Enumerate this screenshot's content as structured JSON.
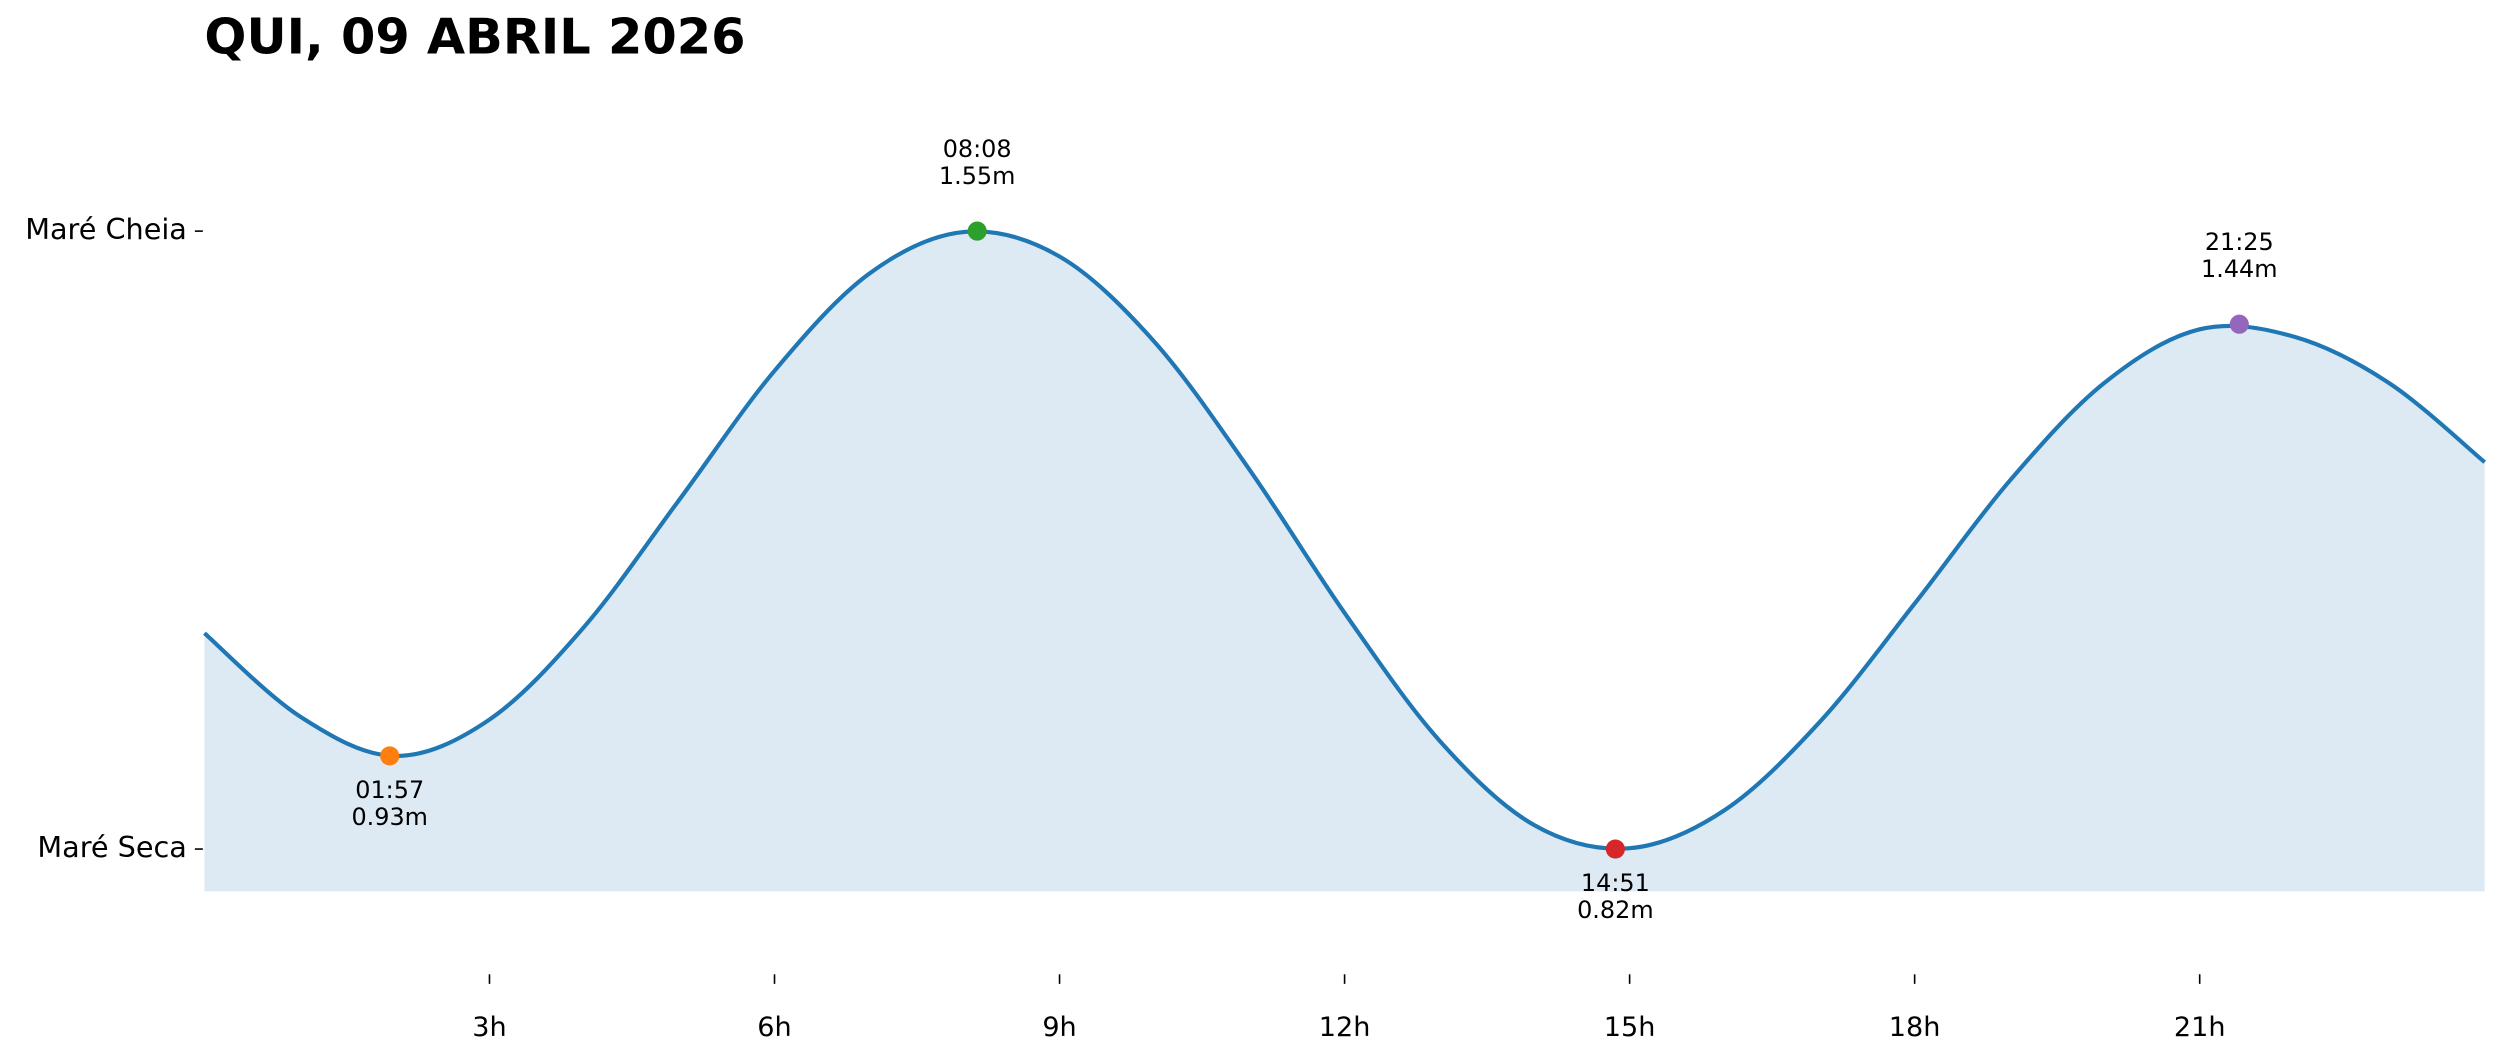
{
  "chart_data": {
    "type": "tide",
    "title": "QUI, 09 ABRIL 2026",
    "xlim": [
      0,
      24
    ],
    "ylim": [
      0.77,
      1.71
    ],
    "xticks": [
      {
        "value": 3,
        "label": "3h"
      },
      {
        "value": 6,
        "label": "6h"
      },
      {
        "value": 9,
        "label": "9h"
      },
      {
        "value": 12,
        "label": "12h"
      },
      {
        "value": 15,
        "label": "15h"
      },
      {
        "value": 18,
        "label": "18h"
      },
      {
        "value": 21,
        "label": "21h"
      }
    ],
    "yticks": [
      {
        "value": 1.55,
        "label": "Maré Cheia"
      },
      {
        "value": 0.82,
        "label": "Maré Seca"
      }
    ],
    "series": [
      {
        "color": "#1f77b4",
        "fill": "#dde9f3",
        "x": [
          0,
          1,
          2,
          3,
          4,
          5,
          6,
          7,
          8,
          9,
          10,
          11,
          12,
          13,
          14,
          15,
          16,
          17,
          18,
          19,
          20,
          21,
          22,
          23,
          24
        ],
        "values": [
          1.075,
          0.977,
          0.93,
          0.973,
          1.083,
          1.233,
          1.385,
          1.5,
          1.549,
          1.52,
          1.419,
          1.268,
          1.099,
          0.948,
          0.848,
          0.821,
          0.866,
          0.97,
          1.11,
          1.255,
          1.371,
          1.434,
          1.425,
          1.37,
          1.277
        ]
      }
    ],
    "extremes": {
      "x": [
        1.95,
        8.133,
        14.85,
        21.417
      ],
      "times": [
        "01:57",
        "08:08",
        "14:51",
        "21:25"
      ],
      "values": [
        0.93,
        1.55,
        0.82,
        1.44
      ],
      "value_labels": [
        "0.93m",
        "1.55m",
        "0.82m",
        "1.44m"
      ],
      "colors": [
        "#ff7f0e",
        "#2ca02c",
        "#d62728",
        "#9467bd"
      ],
      "label_position": [
        "below",
        "above",
        "below",
        "above"
      ]
    }
  }
}
